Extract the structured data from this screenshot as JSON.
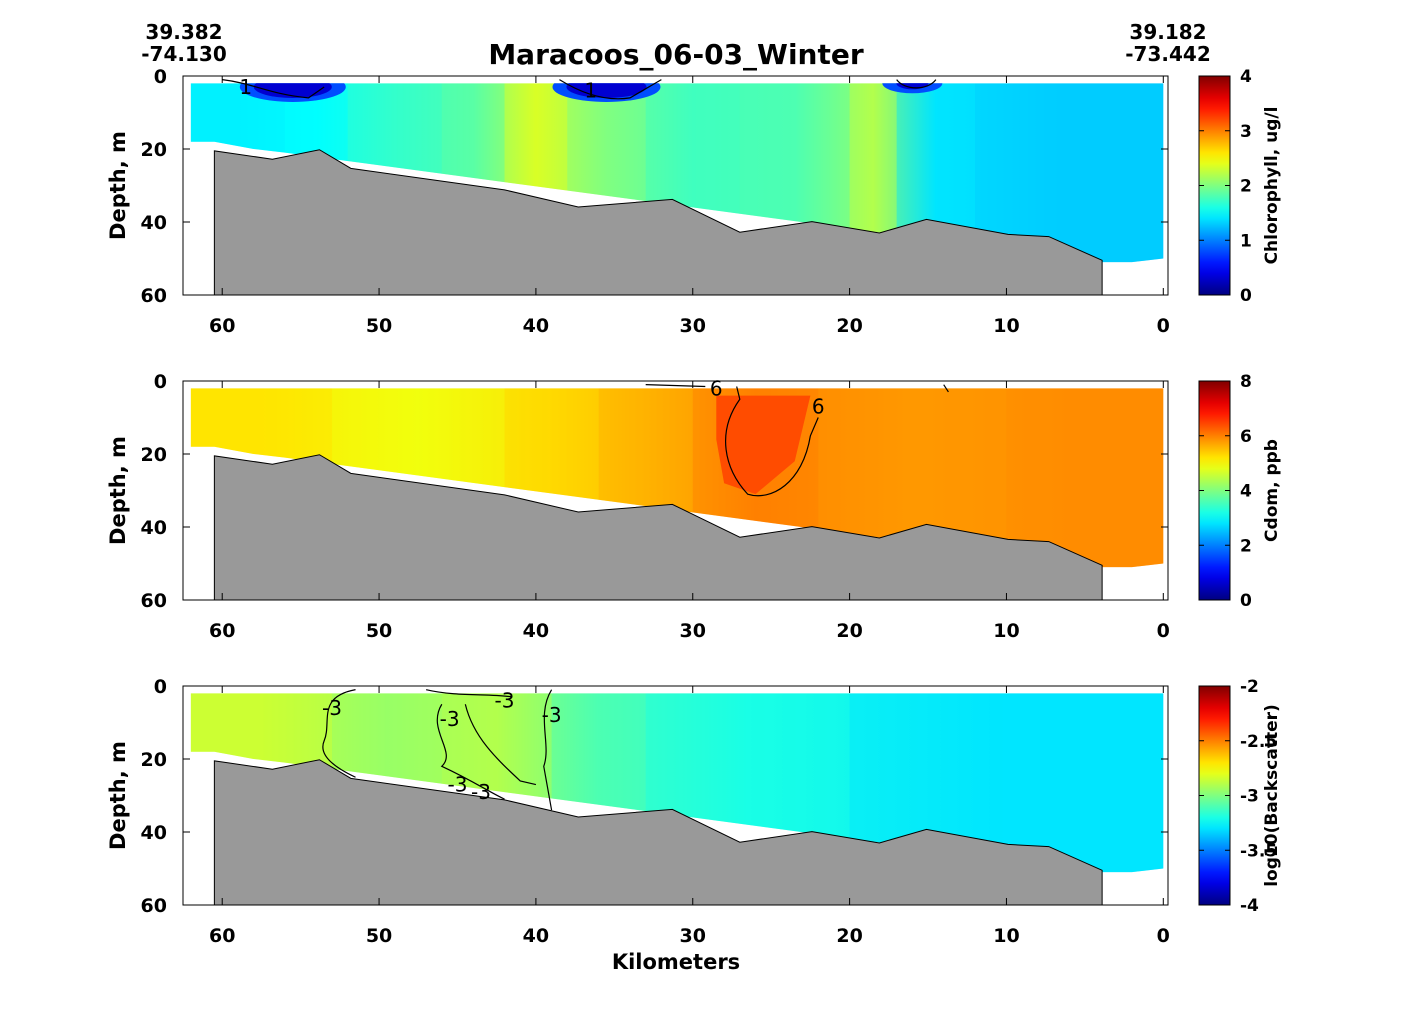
{
  "title": "Maracoos_06-03_Winter",
  "start_coord": {
    "lat": "39.382",
    "lon": "-74.130"
  },
  "end_coord": {
    "lat": "39.182",
    "lon": "-73.442"
  },
  "xlabel": "Kilometers",
  "colors": {
    "bathymetry": "#999999",
    "colormap": "jet"
  },
  "chart_data": [
    {
      "type": "heatmap",
      "name": "chlorophyll",
      "ylabel": "Depth, m",
      "colorbar_label": "Chlorophyll, ug/l",
      "xlim": [
        62.5,
        -0.3
      ],
      "ylim": [
        60,
        0
      ],
      "xticks": [
        60,
        50,
        40,
        30,
        20,
        10,
        0
      ],
      "yticks": [
        0,
        20,
        40,
        60
      ],
      "clim": [
        0,
        4
      ],
      "colorbar_ticks": [
        "0",
        "1",
        "2",
        "3",
        "4"
      ],
      "bands": [
        {
          "x": [
            62,
            56
          ],
          "value": 1.45
        },
        {
          "x": [
            56,
            52
          ],
          "value": 1.5
        },
        {
          "x": [
            52,
            46
          ],
          "value": 1.7
        },
        {
          "x": [
            46,
            42
          ],
          "value": 1.85
        },
        {
          "x": [
            42,
            38
          ],
          "value": 2.35
        },
        {
          "x": [
            38,
            33
          ],
          "value": 2.0
        },
        {
          "x": [
            33,
            27
          ],
          "value": 1.75
        },
        {
          "x": [
            27,
            20
          ],
          "value": 1.8
        },
        {
          "x": [
            20,
            17
          ],
          "value": 2.2
        },
        {
          "x": [
            17,
            12
          ],
          "value": 1.4
        },
        {
          "x": [
            12,
            0
          ],
          "value": 1.3
        }
      ],
      "contours": [
        {
          "level": "1",
          "label_at": [
            58.5,
            3
          ]
        },
        {
          "level": "1",
          "label_at": [
            36.5,
            4
          ]
        }
      ]
    },
    {
      "type": "heatmap",
      "name": "cdom",
      "ylabel": "Depth, m",
      "colorbar_label": "Cdom, ppb",
      "xlim": [
        62.5,
        -0.3
      ],
      "ylim": [
        60,
        0
      ],
      "xticks": [
        60,
        50,
        40,
        30,
        20,
        10,
        0
      ],
      "yticks": [
        0,
        20,
        40,
        60
      ],
      "clim": [
        0,
        8
      ],
      "colorbar_ticks": [
        "0",
        "2",
        "4",
        "6",
        "8"
      ],
      "bands": [
        {
          "x": [
            62,
            53
          ],
          "value": 5.2
        },
        {
          "x": [
            53,
            42
          ],
          "value": 4.9
        },
        {
          "x": [
            42,
            36
          ],
          "value": 5.3
        },
        {
          "x": [
            36,
            30
          ],
          "value": 5.6
        },
        {
          "x": [
            30,
            22
          ],
          "value": 6.0
        },
        {
          "x": [
            22,
            10
          ],
          "value": 5.8
        },
        {
          "x": [
            10,
            0
          ],
          "value": 5.9
        }
      ],
      "contours": [
        {
          "level": "6",
          "label_at": [
            28.5,
            2
          ]
        },
        {
          "level": "6",
          "label_at": [
            22,
            7
          ]
        }
      ]
    },
    {
      "type": "heatmap",
      "name": "backscatter",
      "ylabel": "Depth, m",
      "colorbar_label": "log10(Backscatter)",
      "xlim": [
        62.5,
        -0.3
      ],
      "ylim": [
        60,
        0
      ],
      "xticks": [
        60,
        50,
        40,
        30,
        20,
        10,
        0
      ],
      "yticks": [
        0,
        20,
        40,
        60
      ],
      "clim": [
        -4,
        -2
      ],
      "colorbar_ticks": [
        "-4",
        "-3.5",
        "-3",
        "-2.5",
        "-2"
      ],
      "bands": [
        {
          "x": [
            62,
            53
          ],
          "value": -2.85
        },
        {
          "x": [
            53,
            46
          ],
          "value": -2.95
        },
        {
          "x": [
            46,
            39
          ],
          "value": -2.9
        },
        {
          "x": [
            39,
            33
          ],
          "value": -3.1
        },
        {
          "x": [
            33,
            20
          ],
          "value": -3.2
        },
        {
          "x": [
            20,
            0
          ],
          "value": -3.3
        }
      ],
      "contours": [
        {
          "level": "-3",
          "label_at": [
            53,
            6
          ]
        },
        {
          "level": "-3",
          "label_at": [
            45.5,
            9
          ]
        },
        {
          "level": "-3",
          "label_at": [
            42,
            4
          ]
        },
        {
          "level": "-3",
          "label_at": [
            39,
            8
          ]
        },
        {
          "level": "-3",
          "label_at": [
            45,
            27
          ]
        },
        {
          "level": "-3",
          "label_at": [
            43.5,
            29
          ]
        }
      ]
    }
  ],
  "bathymetry": {
    "km": [
      60.5,
      56.8,
      53.8,
      51.8,
      42.0,
      37.3,
      31.3,
      27.0,
      22.4,
      18.1,
      15.1,
      9.9,
      7.3,
      3.9
    ],
    "depth_m": [
      20.5,
      22.8,
      20.2,
      25.3,
      31.2,
      35.9,
      33.8,
      42.8,
      39.9,
      43.0,
      39.3,
      43.4,
      44.0,
      50.5
    ]
  },
  "data_coverage": {
    "km": [
      62.0,
      60.5,
      58.0,
      56.0,
      4.0,
      2.0,
      0.0
    ],
    "bottom_m": [
      18,
      18,
      20,
      21,
      51,
      51,
      50
    ]
  }
}
